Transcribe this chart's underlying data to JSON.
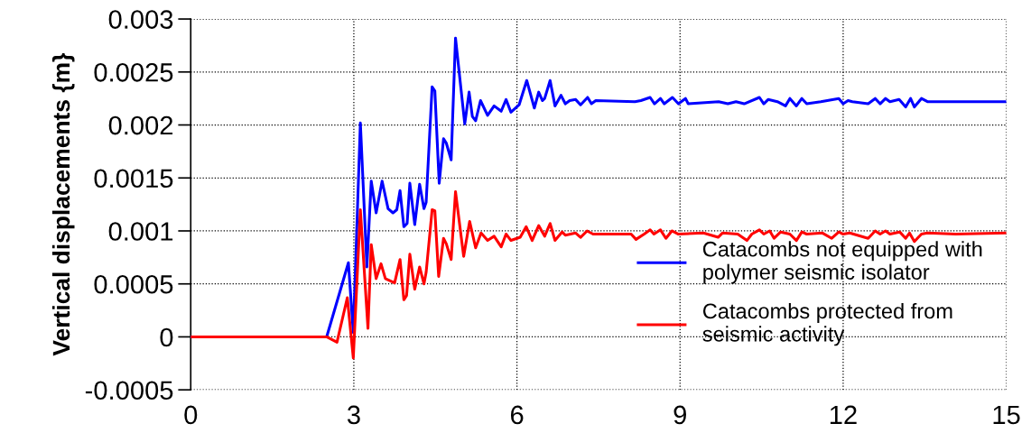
{
  "chart_data": {
    "type": "line",
    "ylabel": "Vertical displacements {m}",
    "xlim": [
      0,
      15
    ],
    "ylim": [
      -0.0005,
      0.003
    ],
    "xticks": [
      0,
      3,
      6,
      9,
      12,
      15
    ],
    "yticks": [
      -0.0005,
      0,
      0.0005,
      0.001,
      0.0015,
      0.002,
      0.0025,
      0.003
    ],
    "grid": true,
    "legend": "right",
    "line_style": "solid",
    "marker": "none",
    "series": [
      {
        "name": "Catacombs not equipped with\npolymer seismic isolator",
        "color": "#0000ff",
        "x": [
          0,
          2.5,
          2.9,
          2.99,
          3.12,
          3.24,
          3.32,
          3.41,
          3.52,
          3.63,
          3.72,
          3.79,
          3.85,
          3.92,
          3.98,
          4.03,
          4.12,
          4.21,
          4.29,
          4.33,
          4.44,
          4.49,
          4.57,
          4.65,
          4.7,
          4.79,
          4.87,
          5.04,
          5.12,
          5.18,
          5.24,
          5.33,
          5.46,
          5.58,
          5.71,
          5.8,
          5.89,
          6.04,
          6.18,
          6.32,
          6.4,
          6.47,
          6.51,
          6.61,
          6.7,
          6.81,
          6.89,
          6.97,
          7.08,
          7.17,
          7.3,
          7.37,
          7.45,
          8.17,
          8.28,
          8.45,
          8.53,
          8.64,
          8.71,
          8.86,
          8.97,
          9.1,
          9.15,
          9.71,
          9.88,
          10.03,
          10.18,
          10.46,
          10.54,
          10.62,
          10.79,
          10.94,
          11.02,
          11.14,
          11.24,
          11.33,
          11.59,
          11.92,
          12.0,
          12.09,
          12.17,
          12.46,
          12.59,
          12.68,
          12.78,
          12.86,
          13.03,
          13.15,
          13.24,
          13.31,
          13.44,
          13.55,
          13.84,
          14.07,
          14.15,
          15
        ],
        "values": [
          0,
          0,
          0.0007,
          4e-05,
          0.00202,
          0.00066,
          0.00147,
          0.00117,
          0.00147,
          0.00121,
          0.00117,
          0.0012,
          0.00138,
          0.00104,
          0.00107,
          0.00145,
          0.00106,
          0.00144,
          0.00121,
          0.00127,
          0.00236,
          0.00232,
          0.00145,
          0.00187,
          0.00183,
          0.00167,
          0.00282,
          0.00201,
          0.00231,
          0.00208,
          0.00204,
          0.00223,
          0.00209,
          0.00218,
          0.00213,
          0.00224,
          0.00212,
          0.00219,
          0.00242,
          0.00216,
          0.00231,
          0.00223,
          0.00225,
          0.00242,
          0.00218,
          0.00228,
          0.0022,
          0.00223,
          0.00224,
          0.00219,
          0.00226,
          0.0022,
          0.00223,
          0.00222,
          0.00223,
          0.00226,
          0.0022,
          0.00225,
          0.0022,
          0.00226,
          0.0022,
          0.00225,
          0.0022,
          0.00222,
          0.0022,
          0.00222,
          0.0022,
          0.00226,
          0.0022,
          0.00224,
          0.00222,
          0.00218,
          0.00225,
          0.00218,
          0.00225,
          0.0022,
          0.00222,
          0.00225,
          0.0022,
          0.00223,
          0.00222,
          0.0022,
          0.00225,
          0.0022,
          0.00225,
          0.00222,
          0.00224,
          0.00217,
          0.00225,
          0.00217,
          0.00225,
          0.00222,
          0.00222,
          0.00222,
          0.00222,
          0.00222
        ]
      },
      {
        "name": "Catacombs protected from\nseismic activity",
        "color": "#ff0000",
        "x": [
          0,
          2.5,
          2.69,
          2.88,
          2.99,
          3.12,
          3.26,
          3.32,
          3.41,
          3.5,
          3.58,
          3.75,
          3.85,
          3.92,
          3.97,
          4.03,
          4.12,
          4.21,
          4.29,
          4.33,
          4.44,
          4.49,
          4.56,
          4.65,
          4.7,
          4.79,
          4.87,
          5.02,
          5.13,
          5.24,
          5.34,
          5.46,
          5.58,
          5.71,
          5.8,
          5.89,
          6.06,
          6.17,
          6.28,
          6.4,
          6.51,
          6.61,
          6.7,
          6.83,
          6.89,
          7.08,
          7.17,
          7.29,
          7.4,
          8.1,
          8.19,
          8.34,
          8.45,
          8.52,
          8.64,
          8.74,
          8.85,
          8.97,
          9.43,
          9.7,
          9.78,
          10.06,
          10.23,
          10.32,
          10.46,
          10.54,
          10.65,
          10.73,
          10.85,
          11.02,
          11.14,
          11.24,
          11.33,
          11.62,
          11.79,
          11.92,
          12.0,
          12.12,
          12.46,
          12.59,
          12.68,
          12.78,
          12.86,
          13.04,
          13.15,
          13.22,
          13.31,
          13.44,
          13.55,
          14.07,
          15
        ],
        "values": [
          0,
          0,
          -5e-05,
          0.00037,
          -0.0002,
          0.0012,
          8e-05,
          0.00087,
          0.00055,
          0.00069,
          0.00055,
          0.00051,
          0.00073,
          0.00035,
          0.00039,
          0.00078,
          0.00045,
          0.00066,
          0.0005,
          0.00061,
          0.0012,
          0.00119,
          0.00057,
          0.00093,
          0.00088,
          0.00073,
          0.00137,
          0.00076,
          0.00109,
          0.00084,
          0.00098,
          0.00091,
          0.00095,
          0.00085,
          0.00097,
          0.00091,
          0.00094,
          0.00104,
          0.00091,
          0.00105,
          0.00095,
          0.00107,
          0.00091,
          0.00099,
          0.00096,
          0.00098,
          0.00094,
          0.001,
          0.00097,
          0.00097,
          0.00092,
          0.00097,
          0.00101,
          0.00097,
          0.00101,
          0.00093,
          0.001,
          0.00097,
          0.00098,
          0.00094,
          0.00098,
          0.00097,
          0.00091,
          0.00097,
          0.00101,
          0.00097,
          0.001,
          0.00093,
          0.00099,
          0.00097,
          0.00091,
          0.00099,
          0.00097,
          0.00098,
          0.00093,
          0.00099,
          0.00097,
          0.00098,
          0.00093,
          0.001,
          0.00097,
          0.001,
          0.00097,
          0.00099,
          0.00093,
          0.00098,
          0.0009,
          0.00097,
          0.00098,
          0.00097,
          0.00098
        ]
      }
    ]
  }
}
